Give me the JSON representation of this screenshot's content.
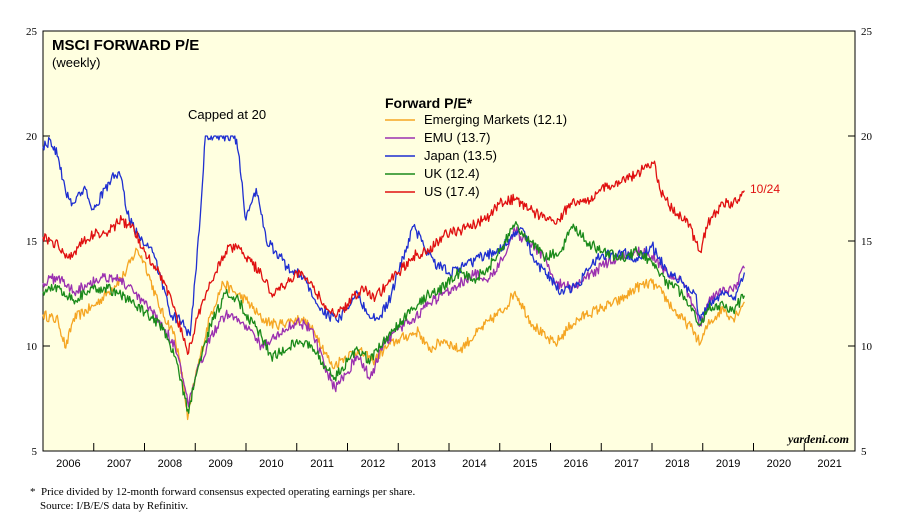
{
  "chart_data": {
    "type": "line",
    "title": "MSCI FORWARD P/E",
    "subtitle": "(weekly)",
    "legend_title": "Forward P/E*",
    "legend_position": "top-center",
    "ylim": [
      5,
      25
    ],
    "y_ticks": [
      "5",
      "10",
      "15",
      "20",
      "25"
    ],
    "xlim": [
      2006,
      2022
    ],
    "x_ticks": [
      "2006",
      "2007",
      "2008",
      "2009",
      "2010",
      "2011",
      "2012",
      "2013",
      "2014",
      "2015",
      "2016",
      "2017",
      "2018",
      "2019",
      "2020",
      "2021"
    ],
    "annotations": {
      "capped": "Capped at 20",
      "last_date": "10/24"
    },
    "watermark": "yardeni.com",
    "series": [
      {
        "name": "Emerging Markets (12.1)",
        "color": "#f5a623",
        "points": [
          [
            2006.0,
            11.5
          ],
          [
            2006.3,
            11.2
          ],
          [
            2006.45,
            9.9
          ],
          [
            2006.6,
            11.3
          ],
          [
            2007.0,
            11.9
          ],
          [
            2007.3,
            12.6
          ],
          [
            2007.6,
            13.4
          ],
          [
            2007.85,
            14.6
          ],
          [
            2008.0,
            14.0
          ],
          [
            2008.3,
            11.8
          ],
          [
            2008.6,
            10.5
          ],
          [
            2008.78,
            8.0
          ],
          [
            2008.85,
            6.5
          ],
          [
            2009.0,
            8.5
          ],
          [
            2009.3,
            11.5
          ],
          [
            2009.55,
            13.0
          ],
          [
            2009.8,
            12.5
          ],
          [
            2010.0,
            12.2
          ],
          [
            2010.3,
            11.3
          ],
          [
            2010.6,
            11.0
          ],
          [
            2010.9,
            11.2
          ],
          [
            2011.1,
            11.3
          ],
          [
            2011.4,
            10.5
          ],
          [
            2011.7,
            9.0
          ],
          [
            2011.9,
            9.4
          ],
          [
            2012.2,
            9.8
          ],
          [
            2012.5,
            9.3
          ],
          [
            2012.8,
            10.0
          ],
          [
            2013.0,
            10.3
          ],
          [
            2013.4,
            10.7
          ],
          [
            2013.6,
            9.8
          ],
          [
            2013.9,
            10.3
          ],
          [
            2014.2,
            9.8
          ],
          [
            2014.5,
            10.5
          ],
          [
            2014.8,
            11.2
          ],
          [
            2015.1,
            11.8
          ],
          [
            2015.3,
            12.6
          ],
          [
            2015.6,
            11.2
          ],
          [
            2015.9,
            10.4
          ],
          [
            2016.1,
            10.1
          ],
          [
            2016.4,
            11.0
          ],
          [
            2016.7,
            11.5
          ],
          [
            2017.0,
            11.8
          ],
          [
            2017.4,
            12.2
          ],
          [
            2017.7,
            12.8
          ],
          [
            2018.0,
            13.0
          ],
          [
            2018.2,
            12.5
          ],
          [
            2018.5,
            11.5
          ],
          [
            2018.8,
            10.8
          ],
          [
            2018.95,
            10.1
          ],
          [
            2019.1,
            11.0
          ],
          [
            2019.4,
            11.8
          ],
          [
            2019.6,
            11.3
          ],
          [
            2019.82,
            12.1
          ]
        ]
      },
      {
        "name": "EMU (13.7)",
        "color": "#9b30b0",
        "points": [
          [
            2006.0,
            13.0
          ],
          [
            2006.3,
            13.3
          ],
          [
            2006.6,
            12.6
          ],
          [
            2006.9,
            13.0
          ],
          [
            2007.2,
            13.3
          ],
          [
            2007.5,
            13.2
          ],
          [
            2007.8,
            12.5
          ],
          [
            2008.0,
            12.0
          ],
          [
            2008.3,
            11.2
          ],
          [
            2008.6,
            10.0
          ],
          [
            2008.8,
            8.0
          ],
          [
            2008.87,
            7.1
          ],
          [
            2009.0,
            8.5
          ],
          [
            2009.3,
            10.5
          ],
          [
            2009.6,
            11.5
          ],
          [
            2009.85,
            11.3
          ],
          [
            2010.0,
            11.0
          ],
          [
            2010.3,
            10.0
          ],
          [
            2010.5,
            10.3
          ],
          [
            2010.8,
            10.8
          ],
          [
            2011.0,
            11.2
          ],
          [
            2011.3,
            10.8
          ],
          [
            2011.55,
            9.0
          ],
          [
            2011.75,
            8.0
          ],
          [
            2011.9,
            8.5
          ],
          [
            2012.2,
            9.5
          ],
          [
            2012.45,
            8.5
          ],
          [
            2012.7,
            10.0
          ],
          [
            2013.0,
            10.8
          ],
          [
            2013.3,
            11.3
          ],
          [
            2013.6,
            12.0
          ],
          [
            2013.9,
            12.5
          ],
          [
            2014.2,
            13.0
          ],
          [
            2014.5,
            13.4
          ],
          [
            2014.8,
            13.2
          ],
          [
            2015.0,
            14.0
          ],
          [
            2015.3,
            15.5
          ],
          [
            2015.6,
            14.8
          ],
          [
            2015.9,
            14.2
          ],
          [
            2016.1,
            13.0
          ],
          [
            2016.4,
            12.8
          ],
          [
            2016.7,
            13.2
          ],
          [
            2017.0,
            13.8
          ],
          [
            2017.4,
            14.3
          ],
          [
            2017.7,
            14.5
          ],
          [
            2018.0,
            14.3
          ],
          [
            2018.3,
            13.5
          ],
          [
            2018.6,
            13.0
          ],
          [
            2018.8,
            12.0
          ],
          [
            2018.95,
            11.0
          ],
          [
            2019.1,
            12.0
          ],
          [
            2019.4,
            12.8
          ],
          [
            2019.6,
            12.6
          ],
          [
            2019.82,
            13.7
          ]
        ]
      },
      {
        "name": "Japan (13.5)",
        "color": "#1f2fd0",
        "points": [
          [
            2006.0,
            19.5
          ],
          [
            2006.15,
            19.8
          ],
          [
            2006.3,
            19.0
          ],
          [
            2006.45,
            17.3
          ],
          [
            2006.6,
            16.8
          ],
          [
            2006.8,
            17.5
          ],
          [
            2007.0,
            16.5
          ],
          [
            2007.3,
            17.8
          ],
          [
            2007.5,
            18.3
          ],
          [
            2007.7,
            16.0
          ],
          [
            2007.9,
            15.2
          ],
          [
            2008.1,
            14.7
          ],
          [
            2008.3,
            13.5
          ],
          [
            2008.5,
            11.5
          ],
          [
            2008.7,
            11.2
          ],
          [
            2008.9,
            10.5
          ],
          [
            2009.08,
            15.5
          ],
          [
            2009.2,
            20.0
          ],
          [
            2009.6,
            20.0
          ],
          [
            2009.78,
            20.0
          ],
          [
            2009.85,
            19.2
          ],
          [
            2010.0,
            16.0
          ],
          [
            2010.2,
            17.5
          ],
          [
            2010.4,
            15.0
          ],
          [
            2010.6,
            14.5
          ],
          [
            2010.8,
            13.8
          ],
          [
            2011.0,
            13.5
          ],
          [
            2011.2,
            13.0
          ],
          [
            2011.4,
            12.0
          ],
          [
            2011.6,
            11.5
          ],
          [
            2011.8,
            11.2
          ],
          [
            2012.0,
            11.8
          ],
          [
            2012.2,
            12.5
          ],
          [
            2012.4,
            11.5
          ],
          [
            2012.6,
            11.3
          ],
          [
            2012.8,
            12.0
          ],
          [
            2013.0,
            13.5
          ],
          [
            2013.3,
            15.7
          ],
          [
            2013.5,
            14.8
          ],
          [
            2013.7,
            14.0
          ],
          [
            2014.0,
            13.5
          ],
          [
            2014.3,
            13.8
          ],
          [
            2014.6,
            14.2
          ],
          [
            2014.9,
            14.5
          ],
          [
            2015.2,
            15.0
          ],
          [
            2015.45,
            15.6
          ],
          [
            2015.7,
            14.0
          ],
          [
            2016.0,
            13.3
          ],
          [
            2016.2,
            12.5
          ],
          [
            2016.5,
            12.8
          ],
          [
            2016.8,
            13.8
          ],
          [
            2017.0,
            14.3
          ],
          [
            2017.4,
            14.5
          ],
          [
            2017.7,
            14.2
          ],
          [
            2018.0,
            14.8
          ],
          [
            2018.3,
            13.5
          ],
          [
            2018.6,
            13.0
          ],
          [
            2018.85,
            12.5
          ],
          [
            2018.95,
            11.2
          ],
          [
            2019.1,
            12.0
          ],
          [
            2019.4,
            12.5
          ],
          [
            2019.6,
            12.2
          ],
          [
            2019.82,
            13.5
          ]
        ]
      },
      {
        "name": "UK (12.4)",
        "color": "#1a8a1a",
        "points": [
          [
            2006.0,
            12.6
          ],
          [
            2006.3,
            12.8
          ],
          [
            2006.6,
            12.2
          ],
          [
            2006.9,
            12.6
          ],
          [
            2007.2,
            12.8
          ],
          [
            2007.5,
            12.5
          ],
          [
            2007.8,
            12.0
          ],
          [
            2008.0,
            11.6
          ],
          [
            2008.3,
            11.0
          ],
          [
            2008.6,
            9.5
          ],
          [
            2008.8,
            7.5
          ],
          [
            2008.87,
            6.8
          ],
          [
            2009.0,
            8.5
          ],
          [
            2009.3,
            11.0
          ],
          [
            2009.6,
            12.5
          ],
          [
            2009.85,
            12.2
          ],
          [
            2010.0,
            11.5
          ],
          [
            2010.3,
            10.5
          ],
          [
            2010.5,
            9.5
          ],
          [
            2010.8,
            9.8
          ],
          [
            2011.0,
            10.3
          ],
          [
            2011.3,
            10.0
          ],
          [
            2011.55,
            9.0
          ],
          [
            2011.75,
            8.5
          ],
          [
            2011.9,
            9.0
          ],
          [
            2012.2,
            9.8
          ],
          [
            2012.45,
            9.3
          ],
          [
            2012.7,
            10.2
          ],
          [
            2013.0,
            11.0
          ],
          [
            2013.3,
            11.8
          ],
          [
            2013.6,
            12.5
          ],
          [
            2013.9,
            12.8
          ],
          [
            2014.2,
            13.5
          ],
          [
            2014.5,
            13.2
          ],
          [
            2014.8,
            13.8
          ],
          [
            2015.0,
            14.5
          ],
          [
            2015.3,
            15.8
          ],
          [
            2015.6,
            15.0
          ],
          [
            2015.9,
            14.2
          ],
          [
            2016.2,
            14.5
          ],
          [
            2016.45,
            15.8
          ],
          [
            2016.7,
            15.0
          ],
          [
            2017.0,
            14.5
          ],
          [
            2017.4,
            14.2
          ],
          [
            2017.7,
            14.5
          ],
          [
            2018.0,
            14.0
          ],
          [
            2018.3,
            13.0
          ],
          [
            2018.6,
            12.5
          ],
          [
            2018.8,
            11.8
          ],
          [
            2018.95,
            11.0
          ],
          [
            2019.1,
            11.8
          ],
          [
            2019.4,
            12.0
          ],
          [
            2019.6,
            11.7
          ],
          [
            2019.82,
            12.4
          ]
        ]
      },
      {
        "name": "US (17.4)",
        "color": "#e01010",
        "points": [
          [
            2006.0,
            15.2
          ],
          [
            2006.3,
            14.8
          ],
          [
            2006.5,
            14.2
          ],
          [
            2006.8,
            15.0
          ],
          [
            2007.0,
            15.3
          ],
          [
            2007.3,
            15.5
          ],
          [
            2007.55,
            16.0
          ],
          [
            2007.8,
            15.5
          ],
          [
            2008.0,
            14.5
          ],
          [
            2008.3,
            13.5
          ],
          [
            2008.55,
            12.0
          ],
          [
            2008.75,
            10.5
          ],
          [
            2008.85,
            9.6
          ],
          [
            2009.0,
            11.0
          ],
          [
            2009.3,
            13.0
          ],
          [
            2009.6,
            14.5
          ],
          [
            2009.85,
            14.8
          ],
          [
            2010.0,
            14.2
          ],
          [
            2010.3,
            13.5
          ],
          [
            2010.5,
            12.5
          ],
          [
            2010.8,
            13.0
          ],
          [
            2011.0,
            13.5
          ],
          [
            2011.3,
            13.0
          ],
          [
            2011.55,
            11.8
          ],
          [
            2011.8,
            11.5
          ],
          [
            2012.0,
            12.0
          ],
          [
            2012.3,
            12.8
          ],
          [
            2012.55,
            12.3
          ],
          [
            2012.8,
            13.0
          ],
          [
            2013.0,
            13.5
          ],
          [
            2013.3,
            14.3
          ],
          [
            2013.6,
            14.5
          ],
          [
            2013.9,
            15.3
          ],
          [
            2014.2,
            15.5
          ],
          [
            2014.5,
            15.8
          ],
          [
            2014.8,
            16.2
          ],
          [
            2015.0,
            16.8
          ],
          [
            2015.3,
            17.0
          ],
          [
            2015.6,
            16.5
          ],
          [
            2015.9,
            16.0
          ],
          [
            2016.1,
            15.8
          ],
          [
            2016.4,
            16.8
          ],
          [
            2016.7,
            16.8
          ],
          [
            2017.0,
            17.5
          ],
          [
            2017.4,
            17.8
          ],
          [
            2017.7,
            18.2
          ],
          [
            2017.9,
            18.5
          ],
          [
            2018.05,
            18.8
          ],
          [
            2018.15,
            17.5
          ],
          [
            2018.4,
            16.5
          ],
          [
            2018.7,
            16.0
          ],
          [
            2018.85,
            15.0
          ],
          [
            2018.95,
            14.5
          ],
          [
            2019.1,
            15.8
          ],
          [
            2019.4,
            16.8
          ],
          [
            2019.6,
            16.8
          ],
          [
            2019.82,
            17.4
          ]
        ]
      }
    ]
  },
  "footnote": {
    "marker": "*",
    "line1": "Price divided by 12-month forward consensus expected operating earnings per share.",
    "line2": "Source: I/B/E/S data by Refinitiv."
  }
}
